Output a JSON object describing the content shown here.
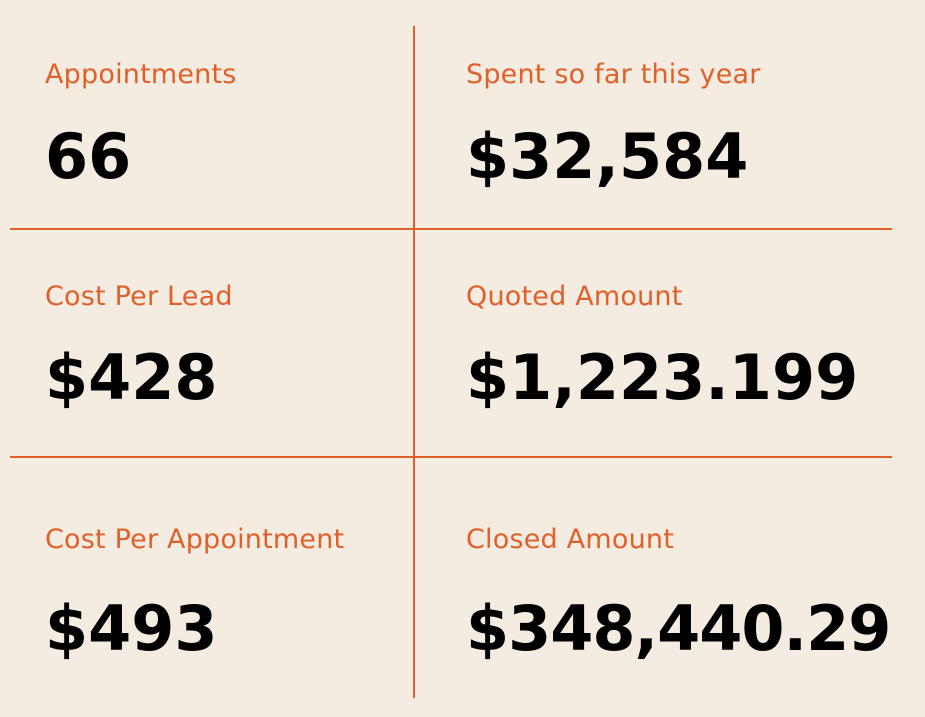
{
  "metrics": [
    {
      "label": "Appointments",
      "value": "66"
    },
    {
      "label": "Spent so far this year",
      "value": "$32,584"
    },
    {
      "label": "Cost Per Lead",
      "value": "$428"
    },
    {
      "label": "Quoted Amount",
      "value": "$1,223.199"
    },
    {
      "label": "Cost Per Appointment",
      "value": "$493"
    },
    {
      "label": "Closed Amount",
      "value": "$348,440.29"
    }
  ],
  "colors": {
    "background": "#f4ebe1",
    "accent": "#e0602a",
    "value_text": "#000000"
  }
}
